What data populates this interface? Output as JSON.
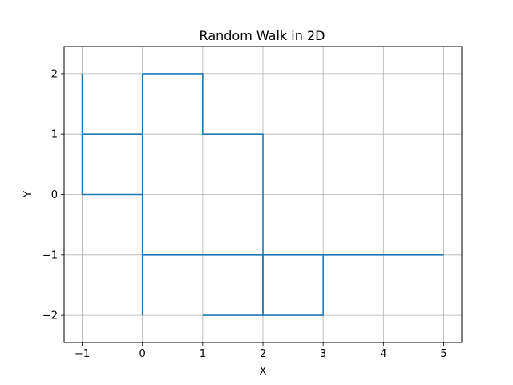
{
  "chart_data": {
    "type": "line",
    "title": "Random Walk in 2D",
    "xlabel": "X",
    "ylabel": "Y",
    "xlim": [
      -1.3,
      5.3
    ],
    "ylim": [
      -2.45,
      2.45
    ],
    "xticks": [
      -1,
      0,
      1,
      2,
      3,
      4,
      5
    ],
    "yticks": [
      -2,
      -1,
      0,
      1,
      2
    ],
    "xtick_labels": [
      "−1",
      "0",
      "1",
      "2",
      "3",
      "4",
      "5"
    ],
    "ytick_labels": [
      "−2",
      "−1",
      "0",
      "1",
      "2"
    ],
    "grid": true,
    "series": [
      {
        "color": "#1f77b4",
        "x": [
          0,
          0,
          1,
          1,
          2,
          2,
          3,
          3,
          5,
          4,
          3,
          2,
          1,
          0,
          0,
          0,
          -1,
          -1,
          -1,
          0,
          0,
          0,
          0
        ],
        "y": [
          -2,
          -1,
          -1,
          -1,
          -1,
          -2,
          -2,
          -1,
          -1,
          -1,
          -1,
          -1,
          -1,
          -1,
          0,
          1,
          1,
          2,
          0,
          0,
          1,
          2,
          2
        ]
      }
    ],
    "path_extra": {
      "x": [
        0,
        1,
        1,
        2,
        2,
        1
      ],
      "y": [
        2,
        2,
        1,
        1,
        -2,
        -2
      ]
    }
  }
}
